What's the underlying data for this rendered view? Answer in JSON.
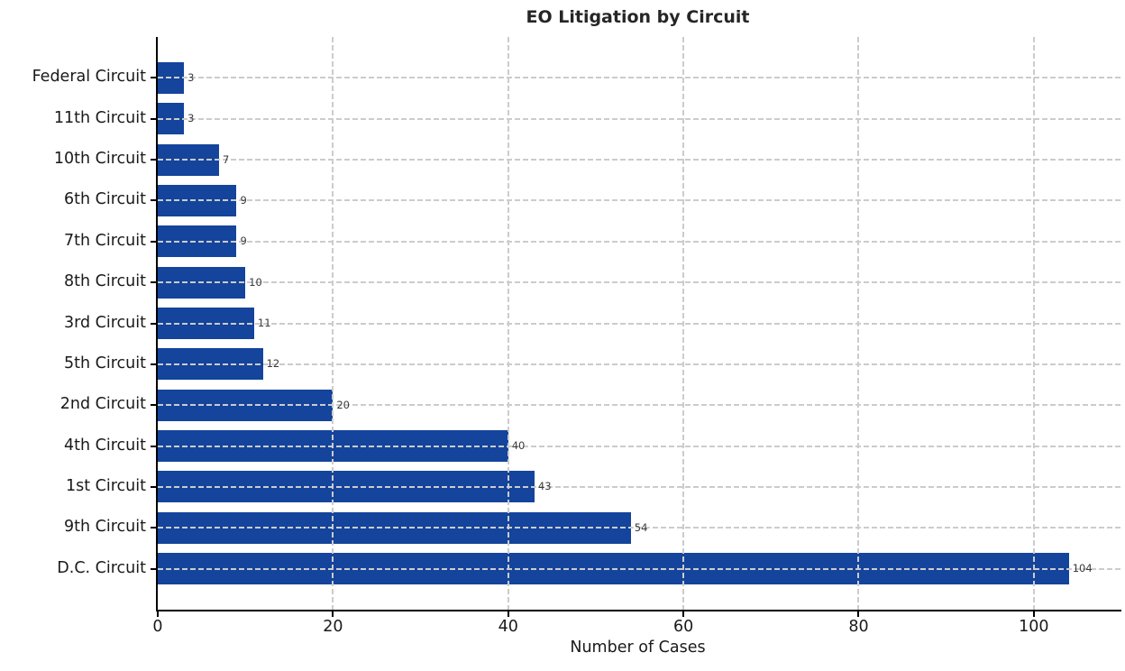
{
  "chart_data": {
    "type": "bar",
    "orientation": "horizontal",
    "title": "EO Litigation by Circuit",
    "xlabel": "Number of Cases",
    "ylabel": "",
    "categories": [
      "Federal Circuit",
      "11th Circuit",
      "10th Circuit",
      "6th Circuit",
      "7th Circuit",
      "8th Circuit",
      "3rd Circuit",
      "5th Circuit",
      "2nd Circuit",
      "4th Circuit",
      "1st Circuit",
      "9th Circuit",
      "D.C. Circuit"
    ],
    "values": [
      3,
      3,
      7,
      9,
      9,
      10,
      11,
      12,
      20,
      40,
      43,
      54,
      104
    ],
    "value_labels": [
      "3",
      "3",
      "7",
      "9",
      "9",
      "10",
      "11",
      "12",
      "20",
      "40",
      "43",
      "54",
      "104"
    ],
    "xlim": [
      0,
      110
    ],
    "xticks": [
      0,
      20,
      40,
      60,
      80,
      100
    ],
    "xtick_labels": [
      "0",
      "20",
      "40",
      "60",
      "80",
      "100"
    ],
    "grid": true,
    "grid_line_style": "dashed",
    "legend": "none",
    "colors": {
      "bar": "#14449c",
      "grid": "#cccccc",
      "spine": "#000000",
      "title_text": "#262626",
      "tick_text": "#1a1a1a",
      "value_text": "#3a3a3a",
      "background": "#ffffff"
    }
  }
}
